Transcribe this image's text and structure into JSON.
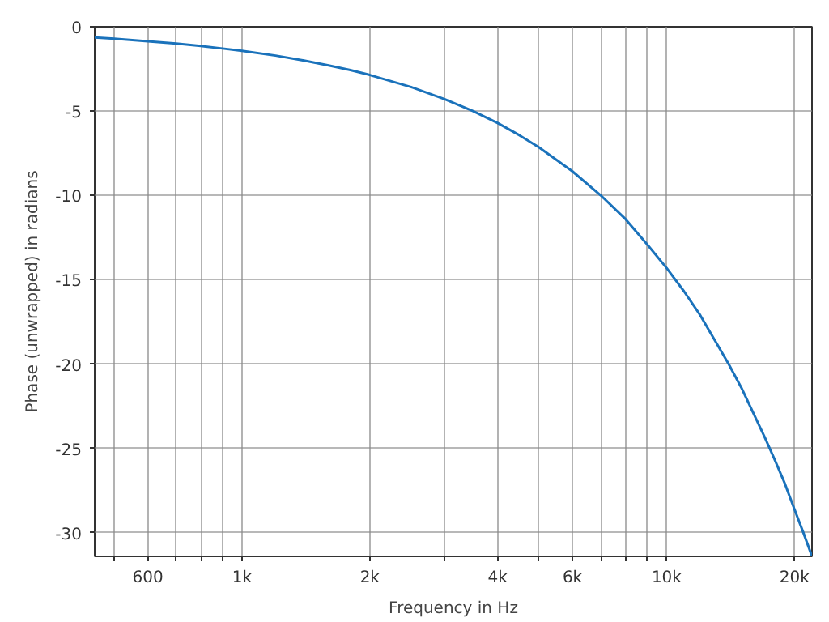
{
  "chart_data": {
    "type": "line",
    "xlabel": "Frequency in Hz",
    "ylabel": "Phase (unwrapped) in radians",
    "log": "x",
    "grid": true,
    "x": [
      450,
      500,
      600,
      700,
      800,
      900,
      1000,
      1200,
      1400,
      1600,
      1800,
      2000,
      2500,
      3000,
      3500,
      4000,
      4500,
      5000,
      6000,
      7000,
      8000,
      9000,
      10000,
      11000,
      12000,
      13000,
      14000,
      15000,
      16000,
      17000,
      18000,
      19000,
      20000,
      21000,
      22000
    ],
    "series": [
      {
        "color": "#1a72bb",
        "values": [
          -0.64,
          -0.71,
          -0.86,
          -1.0,
          -1.14,
          -1.29,
          -1.43,
          -1.71,
          -2.0,
          -2.29,
          -2.57,
          -2.86,
          -3.57,
          -4.29,
          -5.0,
          -5.71,
          -6.43,
          -7.14,
          -8.57,
          -10.0,
          -11.4,
          -12.9,
          -14.3,
          -15.7,
          -17.1,
          -18.6,
          -20.0,
          -21.4,
          -22.9,
          -24.3,
          -25.7,
          -27.1,
          -28.6,
          -30.0,
          -31.4
        ]
      }
    ],
    "xlim": [
      450,
      22000
    ],
    "ylim": [
      -31.4,
      0
    ],
    "xticks": [
      {
        "value": 500,
        "label": null
      },
      600,
      {
        "value": 700,
        "label": null
      },
      {
        "value": 800,
        "label": null
      },
      {
        "value": 900,
        "label": null
      },
      {
        "value": 1000,
        "label": "1k"
      },
      {
        "value": 2000,
        "label": "2k"
      },
      {
        "value": 3000,
        "label": null
      },
      {
        "value": 4000,
        "label": "4k"
      },
      {
        "value": 5000,
        "label": null
      },
      {
        "value": 6000,
        "label": "6k"
      },
      {
        "value": 7000,
        "label": null
      },
      {
        "value": 8000,
        "label": null
      },
      {
        "value": 9000,
        "label": null
      },
      {
        "value": 10000,
        "label": "10k"
      },
      {
        "value": 20000,
        "label": "20k"
      }
    ],
    "yticks": [
      0,
      -5,
      -10,
      -15,
      -20,
      -25,
      -30
    ]
  }
}
